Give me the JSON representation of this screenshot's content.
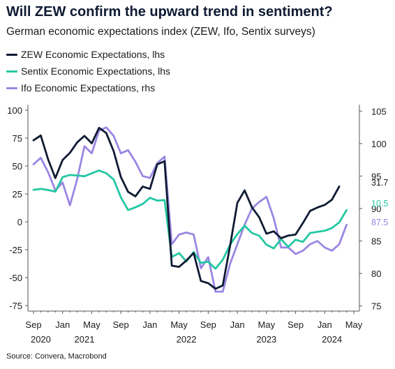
{
  "title": "Will ZEW confirm the upward trend in sentiment?",
  "subtitle": "German economic expectations index (ZEW, Ifo, Sentix surveys)",
  "source": "Source: Convera, Macrobond",
  "colors": {
    "zew": "#0f1b33",
    "sentix": "#24c7a2",
    "ifo": "#9b86e3",
    "axis": "#555555"
  },
  "chart_data": {
    "type": "line",
    "x_axis": {
      "months": [
        "2020-09",
        "2020-10",
        "2020-11",
        "2020-12",
        "2021-01",
        "2021-02",
        "2021-03",
        "2021-04",
        "2021-05",
        "2021-06",
        "2021-07",
        "2021-08",
        "2021-09",
        "2021-10",
        "2021-11",
        "2021-12",
        "2022-01",
        "2022-02",
        "2022-03",
        "2022-04",
        "2022-05",
        "2022-06",
        "2022-07",
        "2022-08",
        "2022-09",
        "2022-10",
        "2022-11",
        "2022-12",
        "2023-01",
        "2023-02",
        "2023-03",
        "2023-04",
        "2023-05",
        "2023-06",
        "2023-07",
        "2023-08",
        "2023-09",
        "2023-10",
        "2023-11",
        "2023-12",
        "2024-01",
        "2024-02",
        "2024-03",
        "2024-04",
        "2024-05"
      ],
      "tick_labels": [
        {
          "month": "2020-09",
          "label": "Sep"
        },
        {
          "month": "2021-01",
          "label": "Jan"
        },
        {
          "month": "2021-05",
          "label": "May"
        },
        {
          "month": "2021-09",
          "label": "Sep"
        },
        {
          "month": "2022-01",
          "label": "Jan"
        },
        {
          "month": "2022-05",
          "label": "May"
        },
        {
          "month": "2022-09",
          "label": "Sep"
        },
        {
          "month": "2023-01",
          "label": "Jan"
        },
        {
          "month": "2023-05",
          "label": "May"
        },
        {
          "month": "2023-09",
          "label": "Sep"
        },
        {
          "month": "2024-01",
          "label": "Jan"
        },
        {
          "month": "2024-05",
          "label": "May"
        }
      ],
      "year_labels": [
        {
          "month": "2020-10",
          "label": "2020"
        },
        {
          "month": "2021-04",
          "label": "2021"
        },
        {
          "month": "2022-06",
          "label": "2022"
        },
        {
          "month": "2023-05",
          "label": "2023"
        },
        {
          "month": "2024-02",
          "label": "2024"
        }
      ]
    },
    "y_left": {
      "range": [
        -80,
        105
      ],
      "ticks": [
        100,
        75,
        50,
        25,
        0,
        -25,
        -50,
        -75
      ]
    },
    "y_right": {
      "range": [
        74.2,
        106
      ],
      "ticks": [
        105,
        100,
        95,
        90,
        85,
        80,
        75
      ]
    },
    "series": [
      {
        "key": "zew",
        "name": "ZEW Economic Expectations, lhs",
        "axis": "left",
        "values": [
          73,
          77.4,
          56,
          39.2,
          55.4,
          61.8,
          71.2,
          77.0,
          70.3,
          84.2,
          79.5,
          63.4,
          40.1,
          26.8,
          22.8,
          31.6,
          29.5,
          51.5,
          54.3,
          -39.3,
          -40.4,
          -34.6,
          -28.0,
          -53.0,
          -55.0,
          -60.0,
          -57.0,
          -21.5,
          17.0,
          28.2,
          13.0,
          4.1,
          -10.7,
          -8.5,
          -14.7,
          -12.3,
          -11.4,
          -1.1,
          9.8,
          12.8,
          15.2,
          19.9,
          31.7
        ],
        "last_label": "31.7"
      },
      {
        "key": "sentix",
        "name": "Sentix Economic Expectations, lhs",
        "axis": "left",
        "values": [
          28.7,
          29.5,
          28.5,
          27.0,
          40.0,
          42.0,
          41.5,
          40.8,
          43.5,
          46.0,
          43.5,
          38.0,
          22.0,
          10.5,
          13.0,
          16.0,
          21.5,
          19.0,
          19.5,
          -31.5,
          -28.0,
          -35.5,
          -27.0,
          -36.8,
          -35.8,
          -42.0,
          -34.0,
          -20.5,
          -11.0,
          -3.5,
          -10.0,
          -12.5,
          -20.5,
          -23.8,
          -15.5,
          -22.5,
          -16.0,
          -18.0,
          -10.0,
          -9.0,
          -8.0,
          -5.5,
          -0.5,
          10.5
        ],
        "last_label": "10.5"
      },
      {
        "key": "ifo",
        "name": "Ifo Economic Expectations, rhs",
        "axis": "right",
        "values": [
          96.8,
          97.8,
          95.6,
          92.8,
          94.0,
          90.5,
          94.5,
          99.6,
          98.5,
          102.0,
          102.5,
          101.2,
          98.5,
          99.0,
          97.2,
          95.0,
          94.7,
          97.0,
          98.0,
          84.5,
          86.0,
          86.3,
          86.0,
          80.8,
          82.5,
          77.2,
          77.2,
          81.5,
          84.5,
          87.5,
          90.0,
          91.0,
          91.8,
          88.5,
          84.0,
          84.0,
          83.0,
          83.5,
          84.5,
          85.0,
          84.0,
          83.5,
          84.5,
          87.5
        ],
        "last_label": "87.5"
      }
    ]
  }
}
